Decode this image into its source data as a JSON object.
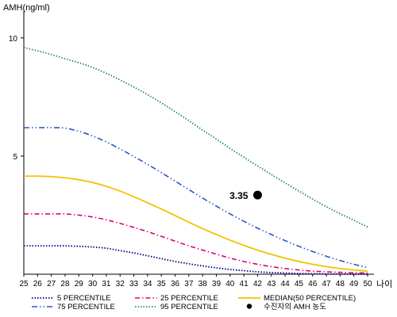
{
  "chart_data": {
    "type": "line",
    "ylabel": "AMH(ng/ml)",
    "xlabel": "나이",
    "xlim": [
      25,
      50
    ],
    "ylim": [
      0,
      11
    ],
    "x_ticks": [
      25,
      26,
      27,
      28,
      29,
      30,
      31,
      32,
      33,
      34,
      35,
      36,
      37,
      38,
      39,
      40,
      41,
      42,
      43,
      44,
      45,
      46,
      47,
      48,
      49,
      50
    ],
    "y_ticks": [
      5,
      10
    ],
    "grid": false,
    "legend_position": "bottom",
    "series": [
      {
        "name": "5 PERCENTILE",
        "color": "#00008b",
        "dash": "dotted",
        "x": [
          25,
          26,
          27,
          28,
          29,
          30,
          31,
          32,
          33,
          34,
          35,
          36,
          37,
          38,
          39,
          40,
          41,
          42,
          43,
          44,
          45,
          46,
          47,
          48,
          49,
          50
        ],
        "y": [
          1.2,
          1.2,
          1.2,
          1.2,
          1.18,
          1.15,
          1.1,
          1.0,
          0.9,
          0.78,
          0.66,
          0.54,
          0.44,
          0.35,
          0.27,
          0.2,
          0.15,
          0.1,
          0.07,
          0.05,
          0.03,
          0.02,
          0.01,
          0.01,
          0.0,
          0.0
        ]
      },
      {
        "name": "25 PERCENTILE",
        "color": "#e0007a",
        "dash": "dashdot",
        "x": [
          25,
          26,
          27,
          28,
          29,
          30,
          31,
          32,
          33,
          34,
          35,
          36,
          37,
          38,
          39,
          40,
          41,
          42,
          43,
          44,
          45,
          46,
          47,
          48,
          49,
          50
        ],
        "y": [
          2.55,
          2.55,
          2.55,
          2.55,
          2.5,
          2.42,
          2.3,
          2.15,
          1.98,
          1.8,
          1.6,
          1.4,
          1.2,
          1.02,
          0.85,
          0.68,
          0.54,
          0.42,
          0.32,
          0.24,
          0.18,
          0.13,
          0.1,
          0.08,
          0.06,
          0.05
        ]
      },
      {
        "name": "MEDIAN(50 PERCENTILE)",
        "color": "#f2c200",
        "dash": "solid",
        "x": [
          25,
          26,
          27,
          28,
          29,
          30,
          31,
          32,
          33,
          34,
          35,
          36,
          37,
          38,
          39,
          40,
          41,
          42,
          43,
          44,
          45,
          46,
          47,
          48,
          49,
          50
        ],
        "y": [
          4.15,
          4.15,
          4.13,
          4.08,
          4.0,
          3.88,
          3.72,
          3.52,
          3.28,
          3.02,
          2.76,
          2.48,
          2.2,
          1.93,
          1.68,
          1.44,
          1.22,
          1.02,
          0.84,
          0.68,
          0.54,
          0.42,
          0.32,
          0.24,
          0.18,
          0.13
        ]
      },
      {
        "name": "75 PERCENTILE",
        "color": "#2e55c8",
        "dash": "dashdotdot",
        "x": [
          25,
          26,
          27,
          28,
          29,
          30,
          31,
          32,
          33,
          34,
          35,
          36,
          37,
          38,
          39,
          40,
          41,
          42,
          43,
          44,
          45,
          46,
          47,
          48,
          49,
          50
        ],
        "y": [
          6.2,
          6.2,
          6.2,
          6.18,
          6.05,
          5.85,
          5.6,
          5.3,
          4.98,
          4.65,
          4.3,
          3.94,
          3.58,
          3.22,
          2.88,
          2.55,
          2.24,
          1.95,
          1.68,
          1.42,
          1.18,
          0.96,
          0.76,
          0.58,
          0.42,
          0.28
        ]
      },
      {
        "name": "95 PERCENTILE",
        "color": "#2e8b57",
        "dash": "dotted",
        "x": [
          25,
          26,
          27,
          28,
          29,
          30,
          31,
          32,
          33,
          34,
          35,
          36,
          37,
          38,
          39,
          40,
          41,
          42,
          43,
          44,
          45,
          46,
          47,
          48,
          49,
          50
        ],
        "y": [
          9.6,
          9.45,
          9.3,
          9.12,
          8.95,
          8.75,
          8.5,
          8.22,
          7.92,
          7.6,
          7.25,
          6.88,
          6.5,
          6.1,
          5.72,
          5.32,
          4.95,
          4.58,
          4.22,
          3.86,
          3.52,
          3.18,
          2.86,
          2.56,
          2.28,
          2.0
        ]
      }
    ],
    "highlight_point": {
      "name": "수진자의 AMH 농도",
      "x": 42,
      "y": 3.35,
      "label": "3.35",
      "color": "#000000"
    }
  }
}
